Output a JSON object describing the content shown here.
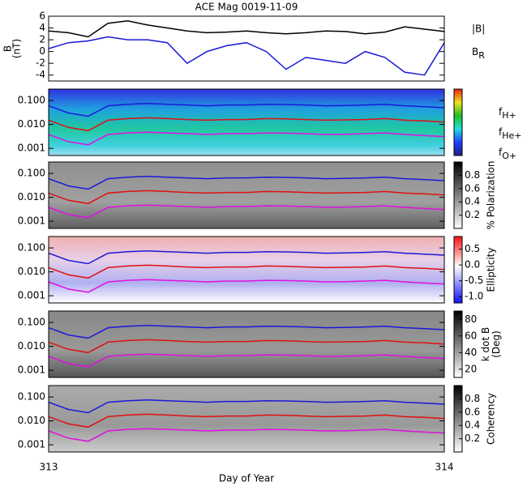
{
  "chart_data": [
    {
      "type": "line",
      "title": "ACE Mag 0019-11-09",
      "ylabel": [
        "B",
        "(nT)"
      ],
      "x": [
        313,
        313.05,
        313.1,
        313.15,
        313.2,
        313.25,
        313.3,
        313.35,
        313.4,
        313.45,
        313.5,
        313.55,
        313.6,
        313.65,
        313.7,
        313.75,
        313.8,
        313.85,
        313.9,
        313.95,
        314
      ],
      "xlim": [
        313,
        314
      ],
      "ylim": [
        -5,
        6
      ],
      "yticks": [
        -4,
        -2,
        0,
        2,
        4,
        6
      ],
      "series": [
        {
          "name": "|B|",
          "color": "#000000",
          "values": [
            3.5,
            3.2,
            2.5,
            4.8,
            5.2,
            4.5,
            4,
            3.5,
            3.2,
            3.3,
            3.5,
            3.2,
            3,
            3.2,
            3.5,
            3.4,
            3,
            3.3,
            4.2,
            3.8,
            3.4
          ]
        },
        {
          "name": "BR",
          "color": "#1a1ad8",
          "values": [
            0.5,
            1.5,
            1.8,
            2.5,
            2,
            2,
            1.5,
            -2,
            0,
            1,
            1.5,
            0,
            -3,
            -1,
            -1.5,
            -2,
            0,
            -1,
            -3.5,
            -4,
            1.5
          ]
        }
      ]
    },
    {
      "type": "line",
      "log": true,
      "x": [
        313,
        313.05,
        313.1,
        313.15,
        313.2,
        313.25,
        313.3,
        313.35,
        313.4,
        313.45,
        313.5,
        313.55,
        313.6,
        313.65,
        313.7,
        313.75,
        313.8,
        313.85,
        313.9,
        313.95,
        314
      ],
      "xlim": [
        313,
        314
      ],
      "ylim": [
        0.0005,
        0.3
      ],
      "yticks": [
        {
          "value": 0.001,
          "label": "0.001"
        },
        {
          "value": 0.01,
          "label": "0.010"
        },
        {
          "value": 0.1,
          "label": "0.100"
        }
      ],
      "series": [
        {
          "name": "fH+",
          "color": "#1a1ad8",
          "values": [
            0.06,
            0.03,
            0.022,
            0.06,
            0.07,
            0.075,
            0.07,
            0.065,
            0.06,
            0.065,
            0.065,
            0.07,
            0.068,
            0.065,
            0.06,
            0.062,
            0.065,
            0.07,
            0.06,
            0.055,
            0.05
          ]
        },
        {
          "name": "fHe+",
          "color": "#e01010",
          "values": [
            0.015,
            0.0075,
            0.0055,
            0.015,
            0.0175,
            0.019,
            0.0175,
            0.016,
            0.015,
            0.016,
            0.016,
            0.0175,
            0.017,
            0.016,
            0.015,
            0.0155,
            0.016,
            0.0175,
            0.015,
            0.014,
            0.0125
          ]
        },
        {
          "name": "fO+",
          "color": "#e010e0",
          "values": [
            0.0038,
            0.0019,
            0.0014,
            0.0038,
            0.0044,
            0.0047,
            0.0044,
            0.0041,
            0.0038,
            0.0041,
            0.0041,
            0.0044,
            0.0043,
            0.0041,
            0.0038,
            0.0039,
            0.0041,
            0.0044,
            0.0038,
            0.0034,
            0.0031
          ]
        }
      ]
    },
    {
      "type": "line",
      "log": true,
      "x": [
        313,
        313.05,
        313.1,
        313.15,
        313.2,
        313.25,
        313.3,
        313.35,
        313.4,
        313.45,
        313.5,
        313.55,
        313.6,
        313.65,
        313.7,
        313.75,
        313.8,
        313.85,
        313.9,
        313.95,
        314
      ],
      "xlim": [
        313,
        314
      ],
      "ylim": [
        0.0005,
        0.3
      ],
      "yticks": [
        {
          "value": 0.001,
          "label": "0.001"
        },
        {
          "value": 0.01,
          "label": "0.010"
        },
        {
          "value": 0.1,
          "label": "0.100"
        }
      ],
      "colorbar": {
        "label": [
          "% Polarization"
        ],
        "lim": [
          0,
          1
        ],
        "ticks": [
          0.2,
          0.4,
          0.6,
          0.8
        ]
      },
      "series": [
        {
          "color": "#1a1ad8",
          "values": [
            0.06,
            0.03,
            0.022,
            0.06,
            0.07,
            0.075,
            0.07,
            0.065,
            0.06,
            0.065,
            0.065,
            0.07,
            0.068,
            0.065,
            0.06,
            0.062,
            0.065,
            0.07,
            0.06,
            0.055,
            0.05
          ]
        },
        {
          "color": "#e01010",
          "values": [
            0.015,
            0.0075,
            0.0055,
            0.015,
            0.0175,
            0.019,
            0.0175,
            0.016,
            0.015,
            0.016,
            0.016,
            0.0175,
            0.017,
            0.016,
            0.015,
            0.0155,
            0.016,
            0.0175,
            0.015,
            0.014,
            0.0125
          ]
        },
        {
          "color": "#e010e0",
          "values": [
            0.0038,
            0.0019,
            0.0014,
            0.0038,
            0.0044,
            0.0047,
            0.0044,
            0.0041,
            0.0038,
            0.0041,
            0.0041,
            0.0044,
            0.0043,
            0.0041,
            0.0038,
            0.0039,
            0.0041,
            0.0044,
            0.0038,
            0.0034,
            0.0031
          ]
        }
      ]
    },
    {
      "type": "line",
      "log": true,
      "x": [
        313,
        313.05,
        313.1,
        313.15,
        313.2,
        313.25,
        313.3,
        313.35,
        313.4,
        313.45,
        313.5,
        313.55,
        313.6,
        313.65,
        313.7,
        313.75,
        313.8,
        313.85,
        313.9,
        313.95,
        314
      ],
      "xlim": [
        313,
        314
      ],
      "ylim": [
        0.0005,
        0.3
      ],
      "yticks": [
        {
          "value": 0.001,
          "label": "0.001"
        },
        {
          "value": 0.01,
          "label": "0.010"
        },
        {
          "value": 0.1,
          "label": "0.100"
        }
      ],
      "colorbar": {
        "label": [
          "Ellipticity"
        ],
        "lim": [
          -1.2,
          0.9
        ],
        "ticks": [
          {
            "value": -1,
            "label": "-1.0"
          },
          {
            "value": -0.5,
            "label": "-0.5"
          },
          {
            "value": 0,
            "label": "0.0"
          },
          {
            "value": 0.5,
            "label": "0.5"
          }
        ]
      },
      "series": [
        {
          "color": "#1a1ad8",
          "values": [
            0.06,
            0.03,
            0.022,
            0.06,
            0.07,
            0.075,
            0.07,
            0.065,
            0.06,
            0.065,
            0.065,
            0.07,
            0.068,
            0.065,
            0.06,
            0.062,
            0.065,
            0.07,
            0.06,
            0.055,
            0.05
          ]
        },
        {
          "color": "#e01010",
          "values": [
            0.015,
            0.0075,
            0.0055,
            0.015,
            0.0175,
            0.019,
            0.0175,
            0.016,
            0.015,
            0.016,
            0.016,
            0.0175,
            0.017,
            0.016,
            0.015,
            0.0155,
            0.016,
            0.0175,
            0.015,
            0.014,
            0.0125
          ]
        },
        {
          "color": "#e010e0",
          "values": [
            0.0038,
            0.0019,
            0.0014,
            0.0038,
            0.0044,
            0.0047,
            0.0044,
            0.0041,
            0.0038,
            0.0041,
            0.0041,
            0.0044,
            0.0043,
            0.0041,
            0.0038,
            0.0039,
            0.0041,
            0.0044,
            0.0038,
            0.0034,
            0.0031
          ]
        }
      ]
    },
    {
      "type": "line",
      "log": true,
      "x": [
        313,
        313.05,
        313.1,
        313.15,
        313.2,
        313.25,
        313.3,
        313.35,
        313.4,
        313.45,
        313.5,
        313.55,
        313.6,
        313.65,
        313.7,
        313.75,
        313.8,
        313.85,
        313.9,
        313.95,
        314
      ],
      "xlim": [
        313,
        314
      ],
      "ylim": [
        0.0005,
        0.3
      ],
      "yticks": [
        {
          "value": 0.001,
          "label": "0.001"
        },
        {
          "value": 0.01,
          "label": "0.010"
        },
        {
          "value": 0.1,
          "label": "0.100"
        }
      ],
      "colorbar": {
        "label": [
          "k dot B",
          "(Deg)"
        ],
        "lim": [
          10,
          90
        ],
        "ticks": [
          20,
          40,
          60,
          80
        ]
      },
      "series": [
        {
          "color": "#1a1ad8",
          "values": [
            0.06,
            0.03,
            0.022,
            0.06,
            0.07,
            0.075,
            0.07,
            0.065,
            0.06,
            0.065,
            0.065,
            0.07,
            0.068,
            0.065,
            0.06,
            0.062,
            0.065,
            0.07,
            0.06,
            0.055,
            0.05
          ]
        },
        {
          "color": "#e01010",
          "values": [
            0.015,
            0.0075,
            0.0055,
            0.015,
            0.0175,
            0.019,
            0.0175,
            0.016,
            0.015,
            0.016,
            0.016,
            0.0175,
            0.017,
            0.016,
            0.015,
            0.0155,
            0.016,
            0.0175,
            0.015,
            0.014,
            0.0125
          ]
        },
        {
          "color": "#e010e0",
          "values": [
            0.0038,
            0.0019,
            0.0014,
            0.0038,
            0.0044,
            0.0047,
            0.0044,
            0.0041,
            0.0038,
            0.0041,
            0.0041,
            0.0044,
            0.0043,
            0.0041,
            0.0038,
            0.0039,
            0.0041,
            0.0044,
            0.0038,
            0.0034,
            0.0031
          ]
        }
      ]
    },
    {
      "type": "line",
      "log": true,
      "xlabel": "Day of Year",
      "x": [
        313,
        313.05,
        313.1,
        313.15,
        313.2,
        313.25,
        313.3,
        313.35,
        313.4,
        313.45,
        313.5,
        313.55,
        313.6,
        313.65,
        313.7,
        313.75,
        313.8,
        313.85,
        313.9,
        313.95,
        314
      ],
      "xlim": [
        313,
        314
      ],
      "xticks": [
        313,
        314
      ],
      "ylim": [
        0.0005,
        0.3
      ],
      "yticks": [
        {
          "value": 0.001,
          "label": "0.001"
        },
        {
          "value": 0.01,
          "label": "0.010"
        },
        {
          "value": 0.1,
          "label": "0.100"
        }
      ],
      "colorbar": {
        "label": [
          "Coherency"
        ],
        "lim": [
          0,
          1
        ],
        "ticks": [
          0.2,
          0.4,
          0.6,
          0.8
        ]
      },
      "series": [
        {
          "color": "#1a1ad8",
          "values": [
            0.06,
            0.03,
            0.022,
            0.06,
            0.07,
            0.075,
            0.07,
            0.065,
            0.06,
            0.065,
            0.065,
            0.07,
            0.068,
            0.065,
            0.06,
            0.062,
            0.065,
            0.07,
            0.06,
            0.055,
            0.05
          ]
        },
        {
          "color": "#e01010",
          "values": [
            0.015,
            0.0075,
            0.0055,
            0.015,
            0.0175,
            0.019,
            0.0175,
            0.016,
            0.015,
            0.016,
            0.016,
            0.0175,
            0.017,
            0.016,
            0.015,
            0.0155,
            0.016,
            0.0175,
            0.015,
            0.014,
            0.0125
          ]
        },
        {
          "color": "#e010e0",
          "values": [
            0.0038,
            0.0019,
            0.0014,
            0.0038,
            0.0044,
            0.0047,
            0.0044,
            0.0041,
            0.0038,
            0.0041,
            0.0041,
            0.0044,
            0.0043,
            0.0041,
            0.0038,
            0.0039,
            0.0041,
            0.0044,
            0.0038,
            0.0034,
            0.0031
          ]
        }
      ]
    }
  ]
}
